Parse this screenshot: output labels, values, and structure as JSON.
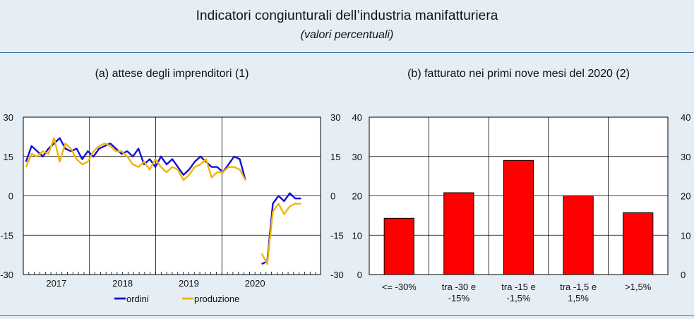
{
  "header": {
    "title": "Indicatori congiunturali dell’industria manifatturiera",
    "subtitle": "(valori percentuali)"
  },
  "chart_data": [
    {
      "type": "line",
      "title": "(a) attese degli imprenditori (1)",
      "ylim": [
        -30,
        30
      ],
      "yticks": [
        "30",
        "15",
        "0",
        "-15",
        "-30"
      ],
      "ytick_values": [
        30,
        15,
        0,
        -15,
        -30
      ],
      "right_axis": true,
      "xlim": [
        2016.5,
        2020.99
      ],
      "xtick_labels": [
        "2017",
        "2018",
        "2019",
        "2020"
      ],
      "year_boundaries": [
        2017.5,
        2018.5,
        2019.5
      ],
      "grid": true,
      "legend_placement": "bottom",
      "series": [
        {
          "name": "ordini",
          "color": "#1010d8",
          "x": [
            2016.54,
            2016.625,
            2016.71,
            2016.795,
            2016.88,
            2016.965,
            2017.05,
            2017.135,
            2017.22,
            2017.305,
            2017.39,
            2017.475,
            2017.56,
            2017.645,
            2017.73,
            2017.815,
            2017.9,
            2017.985,
            2018.07,
            2018.155,
            2018.24,
            2018.325,
            2018.41,
            2018.495,
            2018.58,
            2018.665,
            2018.75,
            2018.835,
            2018.92,
            2019.005,
            2019.09,
            2019.175,
            2019.26,
            2019.345,
            2019.43,
            2019.515,
            2019.6,
            2019.685,
            2019.77,
            2019.855,
            2020.1,
            2020.185,
            2020.27,
            2020.355,
            2020.44,
            2020.525,
            2020.61,
            2020.695
          ],
          "y": [
            13,
            19,
            17,
            15,
            18,
            20,
            22,
            18,
            17,
            18,
            14,
            17,
            15,
            18,
            19,
            20,
            18,
            16,
            17,
            15,
            18,
            12,
            14,
            11,
            15,
            12,
            14,
            11,
            8,
            10,
            13,
            15,
            13,
            11,
            11,
            9,
            12,
            15,
            14,
            6,
            -26,
            -25,
            -3,
            0,
            -2,
            1,
            -1,
            -1
          ]
        },
        {
          "name": "produzione",
          "color": "#f2b400",
          "x": [
            2016.54,
            2016.625,
            2016.71,
            2016.795,
            2016.88,
            2016.965,
            2017.05,
            2017.135,
            2017.22,
            2017.305,
            2017.39,
            2017.475,
            2017.56,
            2017.645,
            2017.73,
            2017.815,
            2017.9,
            2017.985,
            2018.07,
            2018.155,
            2018.24,
            2018.325,
            2018.41,
            2018.495,
            2018.58,
            2018.665,
            2018.75,
            2018.835,
            2018.92,
            2019.005,
            2019.09,
            2019.175,
            2019.26,
            2019.345,
            2019.43,
            2019.515,
            2019.6,
            2019.685,
            2019.77,
            2019.855,
            2020.1,
            2020.185,
            2020.27,
            2020.355,
            2020.44,
            2020.525,
            2020.61,
            2020.695
          ],
          "y": [
            11,
            16,
            15,
            17,
            16,
            22,
            13,
            20,
            18,
            14,
            12,
            13,
            17,
            19,
            20,
            19,
            17,
            17,
            15,
            12,
            11,
            13,
            10,
            14,
            11,
            9,
            11,
            10,
            6,
            8,
            11,
            12,
            14,
            7,
            9,
            9,
            11,
            11,
            10,
            6,
            -22,
            -26,
            -6,
            -3,
            -7,
            -4,
            -3,
            -3
          ]
        }
      ]
    },
    {
      "type": "bar",
      "title": "(b) fatturato nei primi nove mesi del 2020 (2)",
      "categories": [
        [
          "<= -30%"
        ],
        [
          "tra -30 e",
          "-15%"
        ],
        [
          "tra -15 e",
          "-1,5%"
        ],
        [
          "tra -1,5 e",
          "1,5%"
        ],
        [
          ">1,5%"
        ]
      ],
      "values": [
        14.3,
        20.8,
        29.0,
        20.0,
        15.7
      ],
      "ylim": [
        0,
        40
      ],
      "left_yticks": [
        "40",
        "30",
        "20",
        "10",
        "0"
      ],
      "right_yticks": [
        "40",
        "30",
        "20",
        "10",
        "0"
      ],
      "ytick_values": [
        40,
        30,
        20,
        10,
        0
      ],
      "bar_color": "#ff0000",
      "grid": true
    }
  ]
}
